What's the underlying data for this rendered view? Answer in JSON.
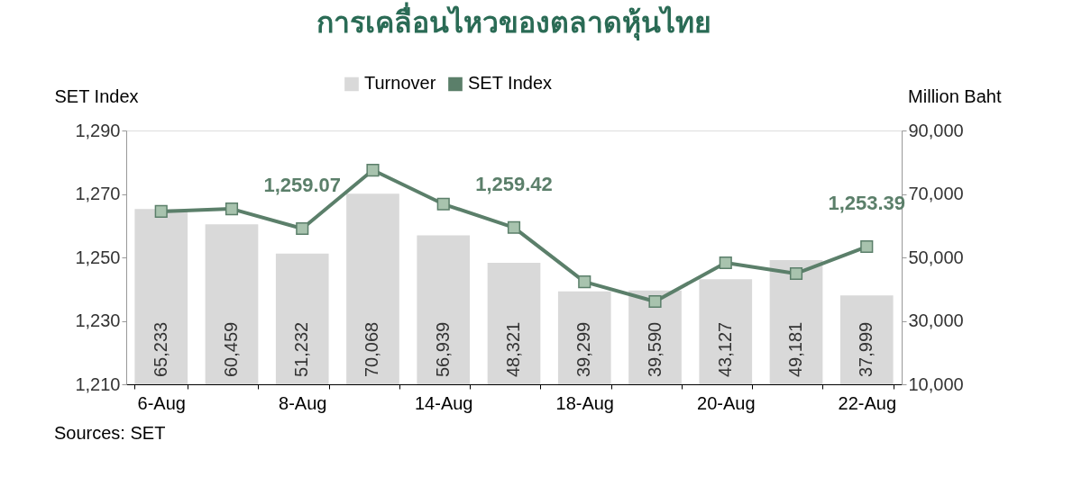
{
  "chart_data": {
    "type": "bar",
    "title": "การเคลื่อนไหวของตลาดหุ้นไทย",
    "ylabel": "SET Index",
    "y2label": "Million Baht",
    "categories": [
      "6-Aug",
      null,
      "8-Aug",
      null,
      "14-Aug",
      null,
      "18-Aug",
      null,
      "20-Aug",
      null,
      "22-Aug"
    ],
    "series": [
      {
        "name": "Turnover",
        "axis": "y2",
        "color": "#d9d9d9",
        "values": [
          65233,
          60459,
          51232,
          70068,
          56939,
          48321,
          39299,
          39590,
          43127,
          49181,
          37999
        ],
        "value_labels": [
          "65,233",
          "60,459",
          "51,232",
          "70,068",
          "56,939",
          "48,321",
          "39,299",
          "39,590",
          "43,127",
          "49,181",
          "37,999"
        ]
      },
      {
        "name": "SET Index",
        "type": "line",
        "color": "#5b7f6a",
        "marker": "square",
        "values": [
          1264.5,
          1265.3,
          1259.07,
          1277.5,
          1266.8,
          1259.42,
          1242.3,
          1236.1,
          1248.3,
          1244.9,
          1253.39
        ],
        "value_labels": [
          null,
          null,
          "1,259.07",
          null,
          null,
          "1,259.42",
          null,
          null,
          null,
          null,
          "1,253.39"
        ]
      }
    ],
    "ylim": [
      1210,
      1290
    ],
    "yticks": [
      {
        "value": 1210,
        "label": "1,210"
      },
      {
        "value": 1230,
        "label": "1,230"
      },
      {
        "value": 1250,
        "label": "1,250"
      },
      {
        "value": 1270,
        "label": "1,270"
      },
      {
        "value": 1290,
        "label": "1,290"
      }
    ],
    "y2lim": [
      10000,
      90000
    ],
    "y2ticks": [
      {
        "value": 10000,
        "label": "10,000"
      },
      {
        "value": 30000,
        "label": "30,000"
      },
      {
        "value": 50000,
        "label": "50,000"
      },
      {
        "value": 70000,
        "label": "70,000"
      },
      {
        "value": 90000,
        "label": "90,000"
      }
    ],
    "legend": "top",
    "grid": false,
    "annotations": [
      "Sources: SET"
    ]
  }
}
